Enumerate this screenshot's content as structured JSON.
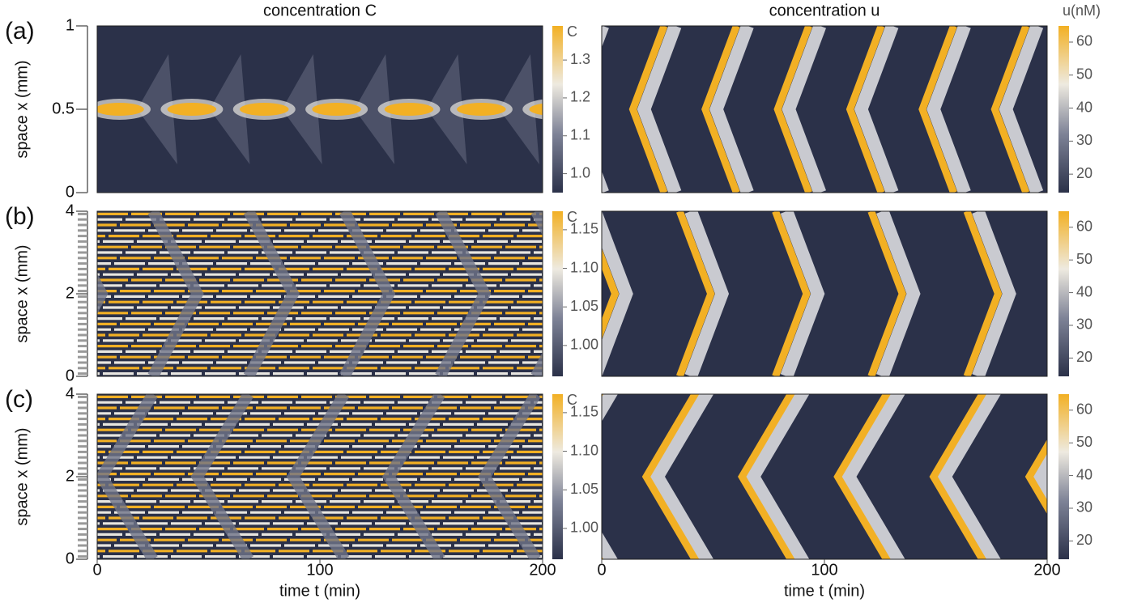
{
  "chart_data": [
    {
      "type": "heatmap",
      "label": "(a)",
      "title": "concentration C",
      "ylabel": "space x (mm)",
      "xlim": [
        0,
        200
      ],
      "ylim": [
        0,
        1
      ],
      "yticks": [
        0,
        0.5,
        1
      ],
      "colorbar": {
        "label": "C",
        "lim": [
          0.95,
          1.39
        ],
        "ticks": [
          {
            "value": 1,
            "label": "1.0"
          },
          1.1,
          1.2,
          1.3
        ]
      }
    },
    {
      "type": "heatmap",
      "title": "concentration u",
      "xlim": [
        0,
        200
      ],
      "colorbar": {
        "label": "u(nM)",
        "lim": [
          14.4,
          64.9
        ],
        "ticks": [
          20,
          30,
          40,
          50,
          60
        ]
      }
    },
    {
      "type": "heatmap",
      "label": "(b)",
      "ylabel": "space x (mm)",
      "xlim": [
        0,
        200
      ],
      "ylim": [
        0,
        4
      ],
      "yticks": [
        0,
        2,
        4
      ],
      "colorbar": {
        "label": "C",
        "lim": [
          0.96,
          1.174
        ],
        "ticks": [
          {
            "value": 1,
            "label": "1.00"
          },
          1.05,
          {
            "value": 1.1,
            "label": "1.10"
          },
          1.15
        ]
      }
    },
    {
      "type": "heatmap",
      "xlim": [
        0,
        200
      ],
      "colorbar": {
        "lim": [
          14.4,
          64.9
        ],
        "ticks": [
          20,
          30,
          40,
          50,
          60
        ]
      }
    },
    {
      "type": "heatmap",
      "label": "(c)",
      "ylabel": "space x (mm)",
      "xlabel": "time t (min)",
      "xlim": [
        0,
        200
      ],
      "xticks": [
        0,
        100,
        200
      ],
      "ylim": [
        0,
        4
      ],
      "yticks": [
        0,
        2,
        4
      ],
      "colorbar": {
        "label": "C",
        "lim": [
          0.96,
          1.174
        ],
        "ticks": [
          {
            "value": 1,
            "label": "1.00"
          },
          1.05,
          {
            "value": 1.1,
            "label": "1.10"
          },
          1.15
        ]
      }
    },
    {
      "type": "heatmap",
      "xlabel": "time t (min)",
      "xlim": [
        0,
        200
      ],
      "xticks": [
        0,
        100,
        200
      ],
      "colorbar": {
        "lim": [
          14.4,
          64.9
        ],
        "ticks": [
          20,
          30,
          40,
          50,
          60
        ]
      }
    }
  ]
}
